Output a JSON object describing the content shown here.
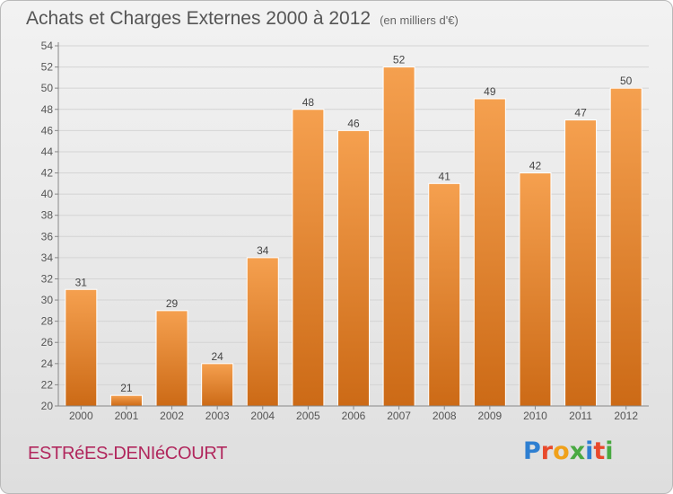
{
  "header": {
    "title": "Achats et Charges Externes 2000 à 2012",
    "unit": "(en milliers d'€)"
  },
  "footer": {
    "location": "ESTRéES-DENIéCOURT",
    "brand": "Proxiti"
  },
  "colors": {
    "bar_light": "#f5a04f",
    "bar_dark": "#cc6a16",
    "axis_line": "#888888",
    "city_text": "#b1275d"
  },
  "chart_data": {
    "type": "bar",
    "title": "Achats et Charges Externes 2000 à 2012",
    "subtitle": "(en milliers d'€)",
    "categories": [
      "2000",
      "2001",
      "2002",
      "2003",
      "2004",
      "2005",
      "2006",
      "2007",
      "2008",
      "2009",
      "2010",
      "2011",
      "2012"
    ],
    "values": [
      31,
      21,
      29,
      24,
      34,
      48,
      46,
      52,
      41,
      49,
      42,
      47,
      50
    ],
    "ylim": [
      20,
      54
    ],
    "yticks": [
      20,
      22,
      24,
      26,
      28,
      30,
      32,
      34,
      36,
      38,
      40,
      42,
      44,
      46,
      48,
      50,
      52,
      54
    ],
    "grid": true,
    "data_labels": true
  }
}
